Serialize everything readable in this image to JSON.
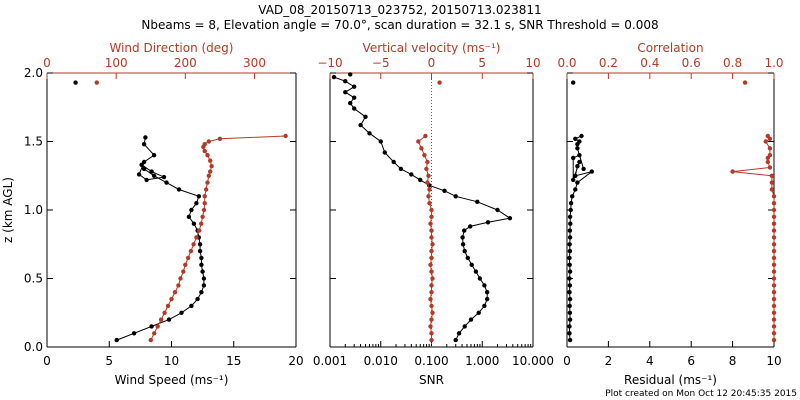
{
  "title_line1": "VAD_08_20150713_023752, 20150713.023811",
  "title_line2": "Nbeams = 8, Elevation angle = 70.0°, scan duration = 32.1 s, SNR Threshold = 0.008",
  "footer": "Plot created on Mon Oct 12 20:45:35 2015",
  "colors": {
    "black": "#000000",
    "red": "#b53a26"
  },
  "ylabel": "z (km AGL)",
  "yticks": [
    "0.0",
    "0.5",
    "1.0",
    "1.5",
    "2.0"
  ],
  "chart_data": [
    {
      "type": "scatter",
      "panel": "wind",
      "ylabel": "z (km AGL)",
      "ylim": [
        0,
        2
      ],
      "bottom_axis": {
        "label": "Wind Speed (ms⁻¹)",
        "range": [
          0,
          20
        ],
        "ticks": [
          "0",
          "5",
          "10",
          "15",
          "20"
        ]
      },
      "top_axis": {
        "label": "Wind Direction (deg)",
        "range": [
          0,
          360
        ],
        "ticks": [
          "0",
          "100",
          "200",
          "300"
        ]
      },
      "series": [
        {
          "name": "Wind Speed (ms⁻¹)",
          "color": "#000000",
          "axis": "bottom",
          "x": [
            5.6,
            7.0,
            8.4,
            9.8,
            10.8,
            11.6,
            12.1,
            12.4,
            12.6,
            12.6,
            12.5,
            12.4,
            12.4,
            12.3,
            12.3,
            12.2,
            12.1,
            11.8,
            11.4,
            11.6,
            12.0,
            12.2,
            10.6,
            9.6,
            8.6,
            7.8,
            7.6,
            8.4,
            9.4,
            8.0,
            7.4,
            7.8,
            8.6,
            7.8,
            7.9,
            2.3
          ],
          "y": [
            0.05,
            0.1,
            0.15,
            0.2,
            0.25,
            0.3,
            0.35,
            0.4,
            0.45,
            0.5,
            0.55,
            0.6,
            0.65,
            0.7,
            0.75,
            0.8,
            0.85,
            0.9,
            0.95,
            1.0,
            1.05,
            1.1,
            1.15,
            1.2,
            1.25,
            1.3,
            1.33,
            1.28,
            1.24,
            1.22,
            1.26,
            1.35,
            1.4,
            1.48,
            1.53,
            1.93
          ]
        },
        {
          "name": "Wind Direction (deg)",
          "color": "#b53a26",
          "axis": "top",
          "x": [
            150,
            155,
            160,
            165,
            170,
            175,
            180,
            185,
            190,
            193,
            197,
            200,
            204,
            208,
            212,
            216,
            220,
            223,
            225,
            227,
            228,
            228,
            230,
            232,
            234,
            236,
            238,
            236,
            232,
            228,
            226,
            228,
            234,
            250,
            345,
            72
          ],
          "y": [
            0.05,
            0.1,
            0.15,
            0.2,
            0.25,
            0.3,
            0.35,
            0.4,
            0.45,
            0.5,
            0.55,
            0.6,
            0.65,
            0.7,
            0.75,
            0.8,
            0.85,
            0.9,
            0.95,
            1.0,
            1.05,
            1.1,
            1.15,
            1.2,
            1.25,
            1.28,
            1.32,
            1.36,
            1.4,
            1.43,
            1.46,
            1.48,
            1.5,
            1.52,
            1.54,
            1.93
          ]
        }
      ]
    },
    {
      "type": "scatter",
      "panel": "snr",
      "ylim": [
        0,
        2
      ],
      "bottom_axis": {
        "label": "SNR",
        "range": [
          0.001,
          10
        ],
        "scale": "log",
        "ticks": [
          "0.001",
          "0.010",
          "0.100",
          "1.000",
          "10.000"
        ]
      },
      "top_axis": {
        "label": "Vertical velocity (ms⁻¹)",
        "range": [
          -10,
          10
        ],
        "ticks": [
          "−10",
          "−5",
          "0",
          "5",
          "10"
        ]
      },
      "zero_line": {
        "axis": "top",
        "value": 0,
        "style": "dotted"
      },
      "series": [
        {
          "name": "SNR",
          "color": "#000000",
          "axis": "bottom",
          "x": [
            0.3,
            0.35,
            0.45,
            0.6,
            0.85,
            1.1,
            1.25,
            1.25,
            1.1,
            0.9,
            0.75,
            0.62,
            0.52,
            0.45,
            0.42,
            0.41,
            0.44,
            0.58,
            1.3,
            3.5,
            2.0,
            0.8,
            0.3,
            0.18,
            0.09,
            0.06,
            0.04,
            0.025,
            0.018,
            0.012,
            0.01,
            0.006,
            0.004,
            0.005,
            0.003,
            0.0025,
            0.003,
            0.002,
            0.003,
            0.002,
            0.0012,
            0.0025
          ],
          "y": [
            0.05,
            0.1,
            0.15,
            0.2,
            0.25,
            0.3,
            0.35,
            0.4,
            0.45,
            0.5,
            0.55,
            0.6,
            0.65,
            0.7,
            0.75,
            0.8,
            0.85,
            0.88,
            0.91,
            0.94,
            1.0,
            1.06,
            1.1,
            1.14,
            1.18,
            1.22,
            1.26,
            1.3,
            1.35,
            1.42,
            1.5,
            1.56,
            1.62,
            1.68,
            1.74,
            1.78,
            1.82,
            1.86,
            1.9,
            1.94,
            1.97,
            1.99
          ]
        },
        {
          "name": "Vertical velocity (ms⁻¹)",
          "color": "#b53a26",
          "axis": "top",
          "x": [
            0,
            0,
            -0.1,
            0,
            0.1,
            0,
            -0.1,
            0,
            0,
            0.1,
            0,
            -0.1,
            0,
            0,
            0.1,
            0,
            0,
            -0.1,
            0,
            0,
            -0.2,
            -0.3,
            -0.2,
            -0.4,
            -0.3,
            -0.5,
            -0.4,
            -0.7,
            -1.0,
            -1.3,
            -0.6,
            0.8
          ],
          "y": [
            0.05,
            0.1,
            0.15,
            0.2,
            0.25,
            0.3,
            0.35,
            0.4,
            0.45,
            0.5,
            0.55,
            0.6,
            0.65,
            0.7,
            0.75,
            0.8,
            0.85,
            0.9,
            0.95,
            1.0,
            1.05,
            1.1,
            1.15,
            1.2,
            1.25,
            1.3,
            1.35,
            1.4,
            1.45,
            1.5,
            1.54,
            1.93
          ]
        }
      ]
    },
    {
      "type": "scatter",
      "panel": "residual",
      "ylim": [
        0,
        2
      ],
      "bottom_axis": {
        "label": "Residual (ms⁻¹)",
        "range": [
          0,
          10
        ],
        "ticks": [
          "0",
          "2",
          "4",
          "6",
          "8",
          "10"
        ]
      },
      "top_axis": {
        "label": "Correlation",
        "range": [
          0,
          1
        ],
        "ticks": [
          "0.0",
          "0.2",
          "0.4",
          "0.6",
          "0.8",
          "1.0"
        ]
      },
      "series": [
        {
          "name": "Residual (ms⁻¹)",
          "color": "#000000",
          "axis": "bottom",
          "x": [
            0.15,
            0.12,
            0.12,
            0.15,
            0.14,
            0.13,
            0.15,
            0.12,
            0.14,
            0.12,
            0.15,
            0.13,
            0.12,
            0.14,
            0.13,
            0.15,
            0.14,
            0.16,
            0.15,
            0.18,
            0.2,
            0.25,
            0.4,
            0.5,
            1.2,
            0.4,
            0.5,
            0.6,
            0.3,
            0.3,
            0.6,
            0.8,
            0.5,
            0.5,
            0.6,
            0.4,
            0.7,
            0.3
          ],
          "y": [
            0.05,
            0.1,
            0.15,
            0.2,
            0.25,
            0.3,
            0.35,
            0.4,
            0.45,
            0.5,
            0.55,
            0.6,
            0.65,
            0.7,
            0.75,
            0.8,
            0.85,
            0.9,
            0.95,
            1.0,
            1.05,
            1.1,
            1.15,
            1.2,
            1.28,
            1.25,
            1.32,
            1.35,
            1.22,
            1.38,
            1.4,
            1.3,
            1.45,
            1.48,
            1.5,
            1.52,
            1.54,
            1.93
          ]
        },
        {
          "name": "Correlation",
          "color": "#b53a26",
          "axis": "top",
          "x": [
            1.0,
            1.0,
            1.0,
            1.0,
            1.0,
            1.0,
            1.0,
            1.0,
            1.0,
            1.0,
            1.0,
            1.0,
            1.0,
            1.0,
            1.0,
            1.0,
            1.0,
            1.0,
            1.0,
            1.0,
            1.0,
            1.0,
            0.99,
            0.99,
            0.99,
            0.8,
            0.98,
            0.97,
            0.97,
            0.98,
            0.98,
            0.96,
            0.98,
            0.97,
            0.86
          ],
          "y": [
            0.05,
            0.1,
            0.15,
            0.2,
            0.25,
            0.3,
            0.35,
            0.4,
            0.45,
            0.5,
            0.55,
            0.6,
            0.65,
            0.7,
            0.75,
            0.8,
            0.85,
            0.9,
            0.95,
            1.0,
            1.05,
            1.1,
            1.15,
            1.2,
            1.25,
            1.28,
            1.31,
            1.35,
            1.38,
            1.4,
            1.45,
            1.5,
            1.52,
            1.54,
            1.93
          ]
        }
      ]
    }
  ]
}
